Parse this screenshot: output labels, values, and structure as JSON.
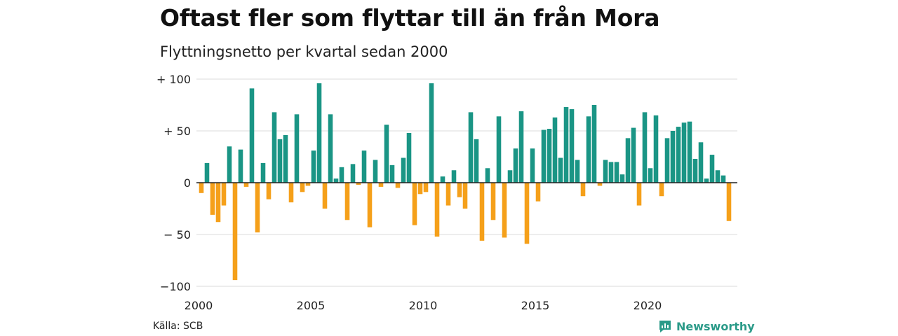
{
  "header": {
    "title": "Oftast fler som flyttar till än från Mora",
    "subtitle": "Flyttningsnetto per kvartal sedan 2000"
  },
  "footer": {
    "source": "Källa: SCB",
    "brand": "Newsworthy"
  },
  "colors": {
    "positive": "#1a9585",
    "negative": "#f5a01a",
    "grid": "#e2e2e2",
    "zero": "#222222"
  },
  "chart_data": {
    "type": "bar",
    "title": "Oftast fler som flyttar till än från Mora",
    "subtitle": "Flyttningsnetto per kvartal sedan 2000",
    "xlabel": "",
    "ylabel": "",
    "ylim": [
      -100,
      100
    ],
    "yticks": [
      100,
      50,
      0,
      -50,
      -100
    ],
    "ytick_labels": [
      "+ 100",
      "+  50",
      "0",
      "− 50",
      "−100"
    ],
    "x_ticks": [
      "2000",
      "2005",
      "2010",
      "2015",
      "2020"
    ],
    "x_range": [
      "2000 Q1",
      "2023 Q4"
    ],
    "grid": true,
    "legend": "none",
    "categories": [
      "2000 Q1",
      "2000 Q2",
      "2000 Q3",
      "2000 Q4",
      "2001 Q1",
      "2001 Q2",
      "2001 Q3",
      "2001 Q4",
      "2002 Q1",
      "2002 Q2",
      "2002 Q3",
      "2002 Q4",
      "2003 Q1",
      "2003 Q2",
      "2003 Q3",
      "2003 Q4",
      "2004 Q1",
      "2004 Q2",
      "2004 Q3",
      "2004 Q4",
      "2005 Q1",
      "2005 Q2",
      "2005 Q3",
      "2005 Q4",
      "2006 Q1",
      "2006 Q2",
      "2006 Q3",
      "2006 Q4",
      "2007 Q1",
      "2007 Q2",
      "2007 Q3",
      "2007 Q4",
      "2008 Q1",
      "2008 Q2",
      "2008 Q3",
      "2008 Q4",
      "2009 Q1",
      "2009 Q2",
      "2009 Q3",
      "2009 Q4",
      "2010 Q1",
      "2010 Q2",
      "2010 Q3",
      "2010 Q4",
      "2011 Q1",
      "2011 Q2",
      "2011 Q3",
      "2011 Q4",
      "2012 Q1",
      "2012 Q2",
      "2012 Q3",
      "2012 Q4",
      "2013 Q1",
      "2013 Q2",
      "2013 Q3",
      "2013 Q4",
      "2014 Q1",
      "2014 Q2",
      "2014 Q3",
      "2014 Q4",
      "2015 Q1",
      "2015 Q2",
      "2015 Q3",
      "2015 Q4",
      "2016 Q1",
      "2016 Q2",
      "2016 Q3",
      "2016 Q4",
      "2017 Q1",
      "2017 Q2",
      "2017 Q3",
      "2017 Q4",
      "2018 Q1",
      "2018 Q2",
      "2018 Q3",
      "2018 Q4",
      "2019 Q1",
      "2019 Q2",
      "2019 Q3",
      "2019 Q4",
      "2020 Q1",
      "2020 Q2",
      "2020 Q3",
      "2020 Q4",
      "2021 Q1",
      "2021 Q2",
      "2021 Q3",
      "2021 Q4",
      "2022 Q1",
      "2022 Q2",
      "2022 Q3",
      "2022 Q4",
      "2023 Q1",
      "2023 Q2",
      "2023 Q3",
      "2023 Q4"
    ],
    "values": [
      -10,
      19,
      -31,
      -38,
      -22,
      35,
      -94,
      32,
      -4,
      91,
      -48,
      19,
      -16,
      68,
      42,
      46,
      -19,
      66,
      -9,
      -3,
      31,
      96,
      -25,
      66,
      4,
      15,
      -36,
      18,
      -2,
      31,
      -43,
      22,
      -4,
      56,
      17,
      -5,
      24,
      48,
      -41,
      -11,
      -9,
      96,
      -52,
      6,
      -22,
      12,
      -14,
      -25,
      68,
      42,
      -56,
      14,
      -36,
      64,
      -53,
      12,
      33,
      69,
      -59,
      33,
      -18,
      51,
      52,
      63,
      24,
      73,
      71,
      22,
      -13,
      64,
      75,
      -3,
      22,
      20,
      20,
      8,
      43,
      53,
      -22,
      68,
      14,
      65,
      -13,
      43,
      50,
      54,
      58,
      59,
      23,
      39,
      4,
      27,
      12,
      7,
      -37,
      0
    ]
  }
}
